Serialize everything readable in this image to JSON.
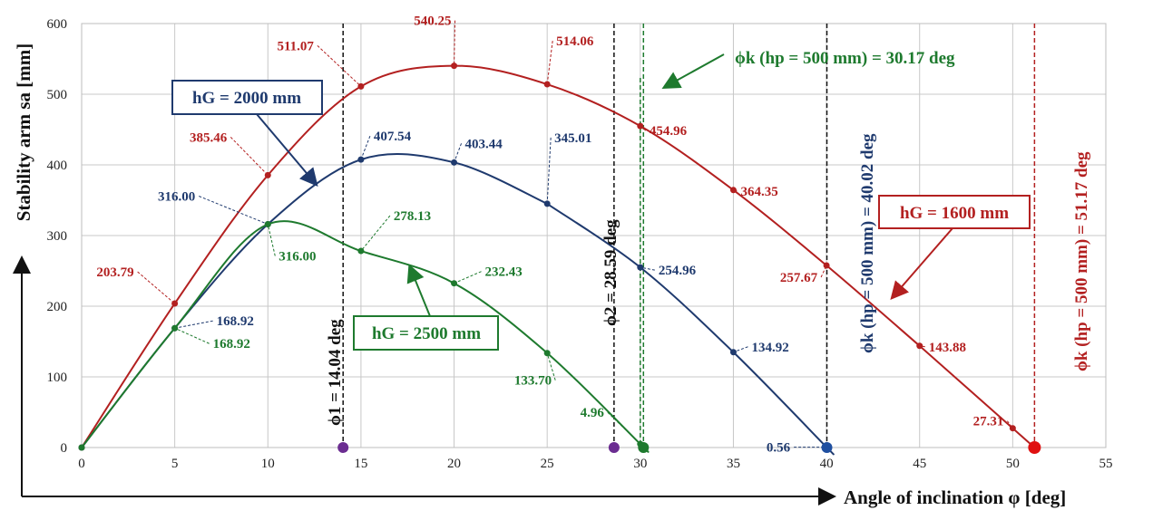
{
  "chart_data": {
    "type": "line",
    "xlabel": "Angle of inclination φ [deg]",
    "ylabel": "Stability arm sa [mm]",
    "xlim": [
      0,
      55
    ],
    "ylim": [
      0,
      600
    ],
    "x_ticks": [
      "0",
      "5",
      "10",
      "15",
      "20",
      "25",
      "30",
      "35",
      "40",
      "45",
      "50",
      "55"
    ],
    "y_ticks": [
      "0",
      "100",
      "200",
      "300",
      "400",
      "500",
      "600"
    ],
    "grid": true,
    "series": [
      {
        "name": "hG = 1600 mm",
        "color": "#b32020",
        "points": [
          {
            "x": 0,
            "y": 0,
            "label": ""
          },
          {
            "x": 5,
            "y": 203.79,
            "label": "203.79"
          },
          {
            "x": 10,
            "y": 385.46,
            "label": "385.46"
          },
          {
            "x": 15,
            "y": 511.07,
            "label": "511.07"
          },
          {
            "x": 20,
            "y": 540.25,
            "label": "540.25"
          },
          {
            "x": 25,
            "y": 514.06,
            "label": "514.06"
          },
          {
            "x": 30,
            "y": 454.96,
            "label": "454.96"
          },
          {
            "x": 35,
            "y": 364.35,
            "label": "364.35"
          },
          {
            "x": 40,
            "y": 257.67,
            "label": "257.67"
          },
          {
            "x": 45,
            "y": 143.88,
            "label": "143.88"
          },
          {
            "x": 50,
            "y": 27.31,
            "label": "27.31"
          },
          {
            "x": 51.17,
            "y": 0,
            "label": ""
          }
        ]
      },
      {
        "name": "hG = 2000 mm",
        "color": "#1f3a6e",
        "points": [
          {
            "x": 0,
            "y": 0,
            "label": ""
          },
          {
            "x": 5,
            "y": 168.92,
            "label": "168.92"
          },
          {
            "x": 10,
            "y": 316.0,
            "label": "316.00"
          },
          {
            "x": 15,
            "y": 407.54,
            "label": "407.54"
          },
          {
            "x": 20,
            "y": 403.44,
            "label": "403.44"
          },
          {
            "x": 25,
            "y": 345.01,
            "label": "345.01"
          },
          {
            "x": 30,
            "y": 254.96,
            "label": "254.96"
          },
          {
            "x": 35,
            "y": 134.92,
            "label": "134.92"
          },
          {
            "x": 40,
            "y": 0.56,
            "label": "0.56"
          },
          {
            "x": 40.02,
            "y": 0,
            "label": ""
          }
        ]
      },
      {
        "name": "hG = 2500 mm",
        "color": "#1e7a2e",
        "points": [
          {
            "x": 0,
            "y": 0,
            "label": ""
          },
          {
            "x": 5,
            "y": 168.92,
            "label": "168.92"
          },
          {
            "x": 10,
            "y": 316.0,
            "label": "316.00"
          },
          {
            "x": 15,
            "y": 278.13,
            "label": "278.13"
          },
          {
            "x": 20,
            "y": 232.43,
            "label": "232.43"
          },
          {
            "x": 25,
            "y": 133.7,
            "label": "133.70"
          },
          {
            "x": 30,
            "y": 4.96,
            "label": "4.96"
          },
          {
            "x": 30.17,
            "y": 0,
            "label": ""
          }
        ]
      }
    ],
    "vertical_markers": [
      {
        "x": 14.04,
        "text": "ϕ1 = 14.04 deg",
        "color": "#6b2d91"
      },
      {
        "x": 28.59,
        "text": "ϕ2 = 28.59 deg",
        "color": "#6b2d91"
      },
      {
        "x": 30.17,
        "text": "ϕk (hp = 500 mm) = 30.17 deg",
        "color": "#1e7a2e"
      },
      {
        "x": 40.02,
        "text": "ϕk (hp = 500 mm) = 40.02 deg",
        "color": "#1f4fa0"
      },
      {
        "x": 51.17,
        "text": "ϕk (hp = 500 mm) = 51.17 deg",
        "color": "#b32020"
      }
    ],
    "annotations": {
      "hG_2000": "hG = 2000 mm",
      "hG_1600": "hG = 1600 mm",
      "hG_2500": "hG = 2500 mm"
    }
  }
}
